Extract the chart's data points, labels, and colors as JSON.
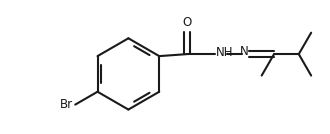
{
  "bg_color": "#ffffff",
  "line_color": "#1a1a1a",
  "line_width": 1.5,
  "font_size_atom": 8.5,
  "figsize": [
    3.3,
    1.34
  ],
  "dpi": 100,
  "br_label": "Br",
  "o_label": "O",
  "nh_label": "NH",
  "n_label": "N"
}
